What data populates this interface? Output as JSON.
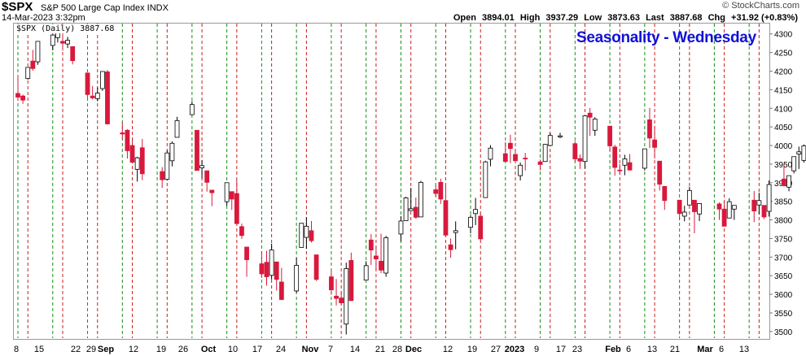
{
  "header": {
    "symbol": "$SPX",
    "description": "S&P 500 Large Cap Index  INDX",
    "datetime": "14-Mar-2023 3:32pm",
    "brand": "© StockCharts.com",
    "open_label": "Open",
    "open": "3894.01",
    "high_label": "High",
    "high": "3937.29",
    "low_label": "Low",
    "low": "3873.63",
    "last_label": "Last",
    "last": "3887.68",
    "chg_label": "Chg",
    "chg": "+31.92 (+0.83%)"
  },
  "legend": "$SPX (Daily) 3887.68",
  "chart_title": "Seasonality - Wednesday",
  "chart_data": {
    "type": "candlestick",
    "title": "Seasonality - Wednesday",
    "ylim": [
      3480,
      4330
    ],
    "y_ticks": [
      3500,
      3550,
      3600,
      3650,
      3700,
      3750,
      3800,
      3850,
      3900,
      3950,
      4000,
      4050,
      4100,
      4150,
      4200,
      4250,
      4300
    ],
    "x_ticks": [
      "8",
      "15",
      "22",
      "29",
      "Sep",
      "12",
      "19",
      "26",
      "Oct",
      "10",
      "17",
      "24",
      "Nov",
      "7",
      "14",
      "21",
      "28",
      "Dec",
      "12",
      "19",
      "27",
      "2023",
      "9",
      "17",
      "23",
      "Feb",
      "6",
      "13",
      "21",
      "Mar",
      "6",
      "13"
    ],
    "colors": {
      "up": "#ffffff",
      "down": "#d8193c",
      "outline": "#000000",
      "highlight": "#f5e622",
      "monday_line": "#1a8c1a",
      "wednesday_line": "#c81e1e"
    },
    "candles": [
      {
        "date": "Aug 8",
        "o": 4140,
        "h": 4186,
        "l": 4120,
        "c": 4130
      },
      {
        "date": "Aug 9",
        "o": 4133,
        "h": 4137,
        "l": 4112,
        "c": 4122
      },
      {
        "date": "Aug 10",
        "o": 4180,
        "h": 4211,
        "l": 4177,
        "c": 4210
      },
      {
        "date": "Aug 11",
        "o": 4227,
        "h": 4257,
        "l": 4201,
        "c": 4207
      },
      {
        "date": "Aug 12",
        "o": 4225,
        "h": 4280,
        "l": 4217,
        "c": 4280
      },
      {
        "date": "Aug 15",
        "o": 4269,
        "h": 4301,
        "l": 4256,
        "c": 4297
      },
      {
        "date": "Aug 16",
        "o": 4290,
        "h": 4325,
        "l": 4277,
        "c": 4305
      },
      {
        "date": "Aug 17",
        "o": 4280,
        "h": 4303,
        "l": 4255,
        "c": 4275
      },
      {
        "date": "Aug 18",
        "o": 4273,
        "h": 4292,
        "l": 4262,
        "c": 4283
      },
      {
        "date": "Aug 19",
        "o": 4266,
        "h": 4266,
        "l": 4218,
        "c": 4228
      },
      {
        "date": "Aug 22",
        "o": 4195,
        "h": 4195,
        "l": 4129,
        "c": 4137
      },
      {
        "date": "Aug 23",
        "o": 4133,
        "h": 4160,
        "l": 4124,
        "c": 4128
      },
      {
        "date": "Aug 24",
        "o": 4126,
        "h": 4156,
        "l": 4119,
        "c": 4141
      },
      {
        "date": "Aug 25",
        "o": 4153,
        "h": 4200,
        "l": 4147,
        "c": 4199
      },
      {
        "date": "Aug 26",
        "o": 4198,
        "h": 4203,
        "l": 4057,
        "c": 4058
      },
      {
        "date": "Aug 29",
        "o": 4034,
        "h": 4062,
        "l": 4017,
        "c": 4031
      },
      {
        "date": "Aug 30",
        "o": 4041,
        "h": 4044,
        "l": 3965,
        "c": 3986
      },
      {
        "date": "Aug 31",
        "o": 4000,
        "h": 4016,
        "l": 3954,
        "c": 3955
      },
      {
        "date": "Sep 1",
        "o": 3936,
        "h": 3970,
        "l": 3903,
        "c": 3967
      },
      {
        "date": "Sep 2",
        "o": 3994,
        "h": 4018,
        "l": 3907,
        "c": 3924
      },
      {
        "date": "Sep 6",
        "o": 3930,
        "h": 3942,
        "l": 3886,
        "c": 3908
      },
      {
        "date": "Sep 7",
        "o": 3909,
        "h": 3987,
        "l": 3906,
        "c": 3980
      },
      {
        "date": "Sep 8",
        "o": 3959,
        "h": 4011,
        "l": 3944,
        "c": 4006
      },
      {
        "date": "Sep 9",
        "o": 4022,
        "h": 4077,
        "l": 4022,
        "c": 4067
      },
      {
        "date": "Sep 12",
        "o": 4083,
        "h": 4119,
        "l": 4083,
        "c": 4110
      },
      {
        "date": "Sep 13",
        "o": 4041,
        "h": 4041,
        "l": 3933,
        "c": 3933
      },
      {
        "date": "Sep 14",
        "o": 3940,
        "h": 3961,
        "l": 3912,
        "c": 3946
      },
      {
        "date": "Sep 15",
        "o": 3932,
        "h": 3932,
        "l": 3876,
        "c": 3901
      },
      {
        "date": "Sep 16",
        "o": 3880,
        "h": 3880,
        "l": 3837,
        "c": 3873
      },
      {
        "date": "Sep 19",
        "o": 3849,
        "h": 3900,
        "l": 3838,
        "c": 3900
      },
      {
        "date": "Sep 20",
        "o": 3876,
        "h": 3876,
        "l": 3827,
        "c": 3856
      },
      {
        "date": "Sep 21",
        "o": 3871,
        "h": 3907,
        "l": 3789,
        "c": 3790
      },
      {
        "date": "Sep 22",
        "o": 3782,
        "h": 3790,
        "l": 3749,
        "c": 3758
      },
      {
        "date": "Sep 23",
        "o": 3727,
        "h": 3727,
        "l": 3647,
        "c": 3693
      },
      {
        "date": "Sep 26",
        "o": 3682,
        "h": 3716,
        "l": 3644,
        "c": 3655
      },
      {
        "date": "Sep 27",
        "o": 3686,
        "h": 3717,
        "l": 3623,
        "c": 3647
      },
      {
        "date": "Sep 28",
        "o": 3651,
        "h": 3736,
        "l": 3640,
        "c": 3719
      },
      {
        "date": "Sep 29",
        "o": 3687,
        "h": 3687,
        "l": 3610,
        "c": 3640
      },
      {
        "date": "Sep 30",
        "o": 3633,
        "h": 3671,
        "l": 3584,
        "c": 3586
      },
      {
        "date": "Oct 3",
        "o": 3609,
        "h": 3698,
        "l": 3604,
        "c": 3678
      },
      {
        "date": "Oct 4",
        "o": 3726,
        "h": 3791,
        "l": 3726,
        "c": 3791
      },
      {
        "date": "Oct 5",
        "o": 3753,
        "h": 3807,
        "l": 3722,
        "c": 3783
      },
      {
        "date": "Oct 6",
        "o": 3771,
        "h": 3797,
        "l": 3739,
        "c": 3744
      },
      {
        "date": "Oct 7",
        "o": 3706,
        "h": 3706,
        "l": 3636,
        "c": 3640
      },
      {
        "date": "Oct 10",
        "o": 3647,
        "h": 3665,
        "l": 3599,
        "c": 3612
      },
      {
        "date": "Oct 11",
        "o": 3595,
        "h": 3641,
        "l": 3570,
        "c": 3589
      },
      {
        "date": "Oct 12",
        "o": 3590,
        "h": 3608,
        "l": 3573,
        "c": 3577
      },
      {
        "date": "Oct 13",
        "o": 3520,
        "h": 3685,
        "l": 3492,
        "c": 3669
      },
      {
        "date": "Oct 14",
        "o": 3691,
        "h": 3712,
        "l": 3584,
        "c": 3583
      },
      {
        "date": "Oct 17",
        "o": 3638,
        "h": 3689,
        "l": 3638,
        "c": 3677
      },
      {
        "date": "Oct 18",
        "o": 3746,
        "h": 3762,
        "l": 3679,
        "c": 3719
      },
      {
        "date": "Oct 19",
        "o": 3703,
        "h": 3728,
        "l": 3666,
        "c": 3695
      },
      {
        "date": "Oct 20",
        "o": 3689,
        "h": 3763,
        "l": 3657,
        "c": 3665
      },
      {
        "date": "Oct 21",
        "o": 3657,
        "h": 3757,
        "l": 3647,
        "c": 3752
      },
      {
        "date": "Oct 24",
        "o": 3762,
        "h": 3810,
        "l": 3742,
        "c": 3797
      },
      {
        "date": "Oct 25",
        "o": 3798,
        "h": 3862,
        "l": 3798,
        "c": 3859
      },
      {
        "date": "Oct 26",
        "o": 3825,
        "h": 3886,
        "l": 3824,
        "c": 3830
      },
      {
        "date": "Oct 27",
        "o": 3834,
        "h": 3860,
        "l": 3803,
        "c": 3807
      },
      {
        "date": "Oct 28",
        "o": 3808,
        "h": 3905,
        "l": 3808,
        "c": 3901
      },
      {
        "date": "Oct 31",
        "o": 3881,
        "h": 3893,
        "l": 3863,
        "c": 3871
      },
      {
        "date": "Nov 1",
        "o": 3901,
        "h": 3911,
        "l": 3843,
        "c": 3856
      },
      {
        "date": "Nov 2",
        "o": 3852,
        "h": 3894,
        "l": 3758,
        "c": 3759
      },
      {
        "date": "Nov 3",
        "o": 3733,
        "h": 3750,
        "l": 3698,
        "c": 3720
      },
      {
        "date": "Nov 4",
        "o": 3766,
        "h": 3796,
        "l": 3721,
        "c": 3771
      },
      {
        "date": "Nov 7",
        "o": 3780,
        "h": 3813,
        "l": 3764,
        "c": 3807
      },
      {
        "date": "Nov 8",
        "o": 3817,
        "h": 3859,
        "l": 3786,
        "c": 3828
      },
      {
        "date": "Nov 9",
        "o": 3810,
        "h": 3818,
        "l": 3744,
        "c": 3749
      },
      {
        "date": "Nov 10",
        "o": 3860,
        "h": 3959,
        "l": 3860,
        "c": 3956
      },
      {
        "date": "Nov 11",
        "o": 3963,
        "h": 4001,
        "l": 3944,
        "c": 3993
      },
      {
        "date": "Nov 14",
        "o": 3978,
        "h": 4009,
        "l": 3956,
        "c": 3957
      },
      {
        "date": "Nov 15",
        "o": 4006,
        "h": 4029,
        "l": 3953,
        "c": 3992
      },
      {
        "date": "Nov 16",
        "o": 3976,
        "h": 3983,
        "l": 3954,
        "c": 3959
      },
      {
        "date": "Nov 17",
        "o": 3919,
        "h": 3954,
        "l": 3906,
        "c": 3947
      },
      {
        "date": "Nov 18",
        "o": 3966,
        "h": 3980,
        "l": 3933,
        "c": 3965
      },
      {
        "date": "Nov 21",
        "o": 3956,
        "h": 3962,
        "l": 3933,
        "c": 3949
      },
      {
        "date": "Nov 22",
        "o": 3957,
        "h": 4004,
        "l": 3956,
        "c": 4003
      },
      {
        "date": "Nov 23",
        "o": 4000,
        "h": 4034,
        "l": 3998,
        "c": 4027
      },
      {
        "date": "Nov 25",
        "o": 4023,
        "h": 4034,
        "l": 4020,
        "c": 4026
      },
      {
        "date": "Nov 28",
        "o": 4005,
        "h": 4012,
        "l": 3956,
        "c": 3964
      },
      {
        "date": "Nov 29",
        "o": 3965,
        "h": 3976,
        "l": 3937,
        "c": 3958
      },
      {
        "date": "Nov 30",
        "o": 3957,
        "h": 4080,
        "l": 3938,
        "c": 4080
      },
      {
        "date": "Dec 1",
        "o": 4087,
        "h": 4101,
        "l": 4026,
        "c": 4076
      },
      {
        "date": "Dec 2",
        "o": 4041,
        "h": 4076,
        "l": 4026,
        "c": 4071
      },
      {
        "date": "Dec 5",
        "o": 4052,
        "h": 4052,
        "l": 3985,
        "c": 3999
      },
      {
        "date": "Dec 6",
        "o": 3996,
        "h": 4002,
        "l": 3919,
        "c": 3941
      },
      {
        "date": "Dec 7",
        "o": 3934,
        "h": 3950,
        "l": 3922,
        "c": 3933
      },
      {
        "date": "Dec 8",
        "o": 3947,
        "h": 3975,
        "l": 3920,
        "c": 3964
      },
      {
        "date": "Dec 9",
        "o": 3954,
        "h": 3977,
        "l": 3933,
        "c": 3934
      },
      {
        "date": "Dec 12",
        "o": 3939,
        "h": 3991,
        "l": 3933,
        "c": 3991
      },
      {
        "date": "Dec 13",
        "o": 4069,
        "h": 4101,
        "l": 3993,
        "c": 4020
      },
      {
        "date": "Dec 14",
        "o": 4015,
        "h": 4053,
        "l": 3965,
        "c": 3995
      },
      {
        "date": "Dec 15",
        "o": 3958,
        "h": 3958,
        "l": 3879,
        "c": 3896
      },
      {
        "date": "Dec 16",
        "o": 3890,
        "h": 3890,
        "l": 3827,
        "c": 3852
      },
      {
        "date": "Dec 19",
        "o": 3853,
        "h": 3854,
        "l": 3800,
        "c": 3817
      },
      {
        "date": "Dec 20",
        "o": 3810,
        "h": 3838,
        "l": 3796,
        "c": 3821
      },
      {
        "date": "Dec 21",
        "o": 3840,
        "h": 3889,
        "l": 3839,
        "c": 3879
      },
      {
        "date": "Dec 22",
        "o": 3853,
        "h": 3853,
        "l": 3764,
        "c": 3822
      },
      {
        "date": "Dec 23",
        "o": 3816,
        "h": 3845,
        "l": 3797,
        "c": 3844
      },
      {
        "date": "Dec 27",
        "o": 3843,
        "h": 3847,
        "l": 3800,
        "c": 3829
      },
      {
        "date": "Dec 28",
        "o": 3829,
        "h": 3849,
        "l": 3783,
        "c": 3783
      },
      {
        "date": "Dec 29",
        "o": 3805,
        "h": 3858,
        "l": 3805,
        "c": 3849
      },
      {
        "date": "Dec 30",
        "o": 3829,
        "h": 3839,
        "l": 3800,
        "c": 3839
      },
      {
        "date": "Jan 3",
        "o": 3853,
        "h": 3878,
        "l": 3794,
        "c": 3824
      },
      {
        "date": "Jan 4",
        "o": 3840,
        "h": 3873,
        "l": 3815,
        "c": 3852
      },
      {
        "date": "Jan 5",
        "o": 3839,
        "h": 3839,
        "l": 3802,
        "c": 3808
      },
      {
        "date": "Jan 6",
        "o": 3823,
        "h": 3906,
        "l": 3809,
        "c": 3895
      },
      {
        "date": "Jan 9",
        "o": 3910,
        "h": 3950,
        "l": 3890,
        "c": 3892
      },
      {
        "date": "Jan 10",
        "o": 3888,
        "h": 3919,
        "l": 3877,
        "c": 3919
      },
      {
        "date": "Jan 11",
        "o": 3932,
        "h": 3970,
        "l": 3925,
        "c": 3970
      },
      {
        "date": "Jan 12",
        "o": 3977,
        "h": 3997,
        "l": 3937,
        "c": 3983
      },
      {
        "date": "Jan 13",
        "o": 3960,
        "h": 4003,
        "l": 3954,
        "c": 3999
      },
      {
        "date": "Jan 17",
        "o": 3999,
        "h": 4015,
        "l": 3984,
        "c": 3991
      },
      {
        "date": "Jan 18",
        "o": 4003,
        "h": 4015,
        "l": 3926,
        "c": 3929
      },
      {
        "date": "Jan 19",
        "o": 3912,
        "h": 3922,
        "l": 3885,
        "c": 3899
      },
      {
        "date": "Jan 20",
        "o": 3909,
        "h": 3973,
        "l": 3900,
        "c": 3973
      },
      {
        "date": "Jan 23",
        "o": 3979,
        "h": 4040,
        "l": 3979,
        "c": 4020
      },
      {
        "date": "Jan 24",
        "o": 4001,
        "h": 4032,
        "l": 3995,
        "c": 4017
      },
      {
        "date": "Jan 25",
        "o": 3982,
        "h": 4019,
        "l": 3950,
        "c": 4016
      },
      {
        "date": "Jan 26",
        "o": 4036,
        "h": 4061,
        "l": 4013,
        "c": 4060
      },
      {
        "date": "Jan 27",
        "o": 4053,
        "h": 4094,
        "l": 4048,
        "c": 4071
      },
      {
        "date": "Jan 30",
        "o": 4050,
        "h": 4063,
        "l": 4015,
        "c": 4018
      },
      {
        "date": "Jan 31",
        "o": 4021,
        "h": 4077,
        "l": 4021,
        "c": 4077
      },
      {
        "date": "Feb 1",
        "o": 4070,
        "h": 4148,
        "l": 4037,
        "c": 4119
      },
      {
        "date": "Feb 2",
        "o": 4158,
        "h": 4196,
        "l": 4141,
        "c": 4180
      },
      {
        "date": "Feb 3",
        "o": 4136,
        "h": 4183,
        "l": 4124,
        "c": 4136
      },
      {
        "date": "Feb 6",
        "o": 4120,
        "h": 4124,
        "l": 4103,
        "c": 4111
      },
      {
        "date": "Feb 7",
        "o": 4105,
        "h": 4176,
        "l": 4088,
        "c": 4164
      },
      {
        "date": "Feb 8",
        "o": 4153,
        "h": 4156,
        "l": 4111,
        "c": 4117
      },
      {
        "date": "Feb 9",
        "o": 4144,
        "h": 4157,
        "l": 4069,
        "c": 4081
      },
      {
        "date": "Feb 10",
        "o": 4077,
        "h": 4094,
        "l": 4061,
        "c": 4090
      },
      {
        "date": "Feb 13",
        "o": 4096,
        "h": 4138,
        "l": 4092,
        "c": 4137
      },
      {
        "date": "Feb 14",
        "o": 4127,
        "h": 4159,
        "l": 4095,
        "c": 4136
      },
      {
        "date": "Feb 15",
        "o": 4119,
        "h": 4148,
        "l": 4113,
        "c": 4147
      },
      {
        "date": "Feb 16",
        "o": 4114,
        "h": 4136,
        "l": 4089,
        "c": 4090
      },
      {
        "date": "Feb 17",
        "o": 4077,
        "h": 4082,
        "l": 4048,
        "c": 4079
      },
      {
        "date": "Feb 21",
        "o": 4052,
        "h": 4052,
        "l": 3995,
        "c": 3997
      },
      {
        "date": "Feb 22",
        "o": 4002,
        "h": 4017,
        "l": 3982,
        "c": 3991
      },
      {
        "date": "Feb 23",
        "o": 4018,
        "h": 4029,
        "l": 3978,
        "c": 4012
      },
      {
        "date": "Feb 24",
        "o": 3973,
        "h": 3979,
        "l": 3943,
        "c": 3970
      },
      {
        "date": "Feb 27",
        "o": 3992,
        "h": 4018,
        "l": 3976,
        "c": 3982
      },
      {
        "date": "Feb 28",
        "o": 3977,
        "h": 3997,
        "l": 3968,
        "c": 3970
      },
      {
        "date": "Mar 1",
        "o": 3963,
        "h": 3971,
        "l": 3939,
        "c": 3951
      },
      {
        "date": "Mar 2",
        "o": 3938,
        "h": 3990,
        "l": 3928,
        "c": 3981
      },
      {
        "date": "Mar 3",
        "o": 3998,
        "h": 4048,
        "l": 3995,
        "c": 4045
      },
      {
        "date": "Mar 6",
        "o": 4055,
        "h": 4078,
        "l": 4044,
        "c": 4048
      },
      {
        "date": "Mar 7",
        "o": 4048,
        "h": 4050,
        "l": 3980,
        "c": 3986
      },
      {
        "date": "Mar 8",
        "o": 3987,
        "h": 4000,
        "l": 3969,
        "c": 3992
      },
      {
        "date": "Mar 9",
        "o": 3998,
        "h": 4017,
        "l": 3909,
        "c": 3918
      },
      {
        "date": "Mar 10",
        "o": 3912,
        "h": 3934,
        "l": 3846,
        "c": 3861
      },
      {
        "date": "Mar 13",
        "o": 3835,
        "h": 3905,
        "l": 3808,
        "c": 3855
      },
      {
        "date": "Mar 14",
        "o": 3894,
        "h": 3937,
        "l": 3874,
        "c": 3888
      }
    ]
  }
}
